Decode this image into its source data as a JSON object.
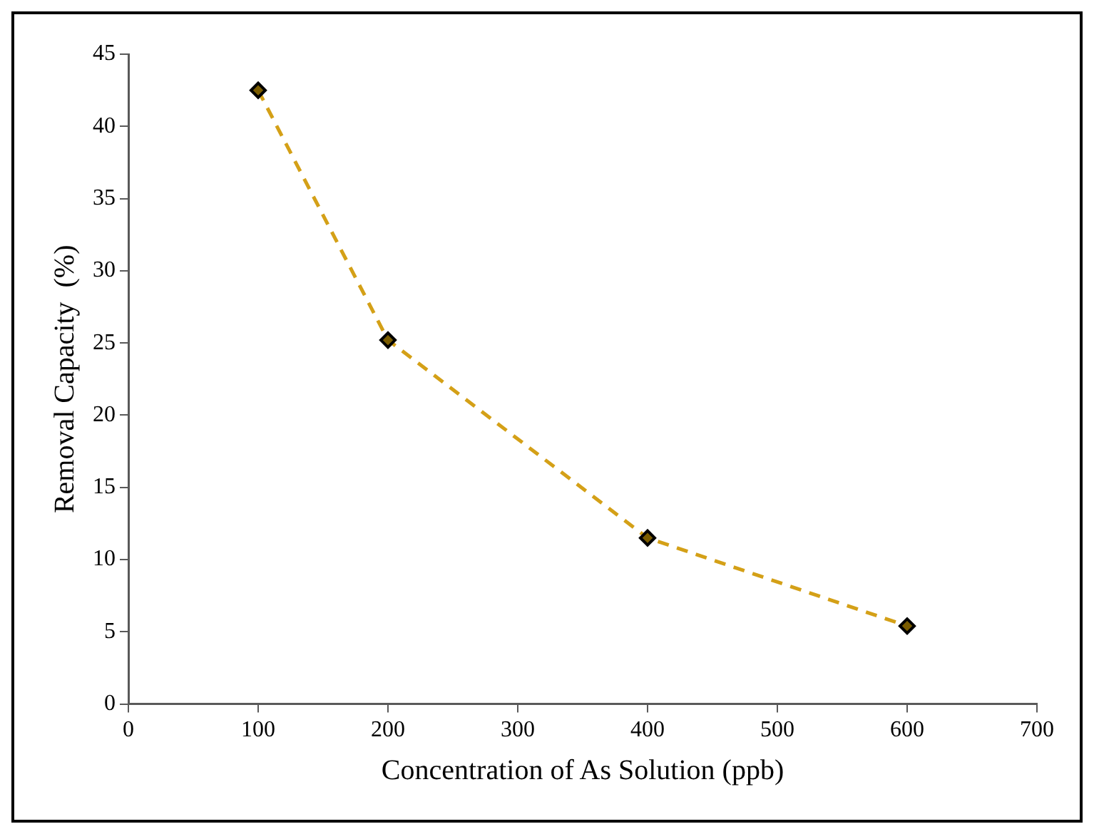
{
  "chart_data": {
    "type": "line",
    "xlabel": "Concentration of As Solution (ppb)",
    "ylabel": "Removal Capacity  (%)",
    "x": [
      100,
      200,
      400,
      600
    ],
    "series": [
      {
        "color": "#d4a017",
        "values": [
          42.5,
          25.2,
          11.5,
          5.4
        ]
      }
    ],
    "xlim": [
      0,
      700
    ],
    "xticks": [
      0,
      100,
      200,
      300,
      400,
      500,
      600,
      700
    ],
    "ylim": [
      0,
      45
    ],
    "yticks": [
      0,
      5,
      10,
      15,
      20,
      25,
      30,
      35,
      40,
      45
    ],
    "grid": false,
    "legend": false,
    "marker": "diamond",
    "line_style": "dashed"
  }
}
